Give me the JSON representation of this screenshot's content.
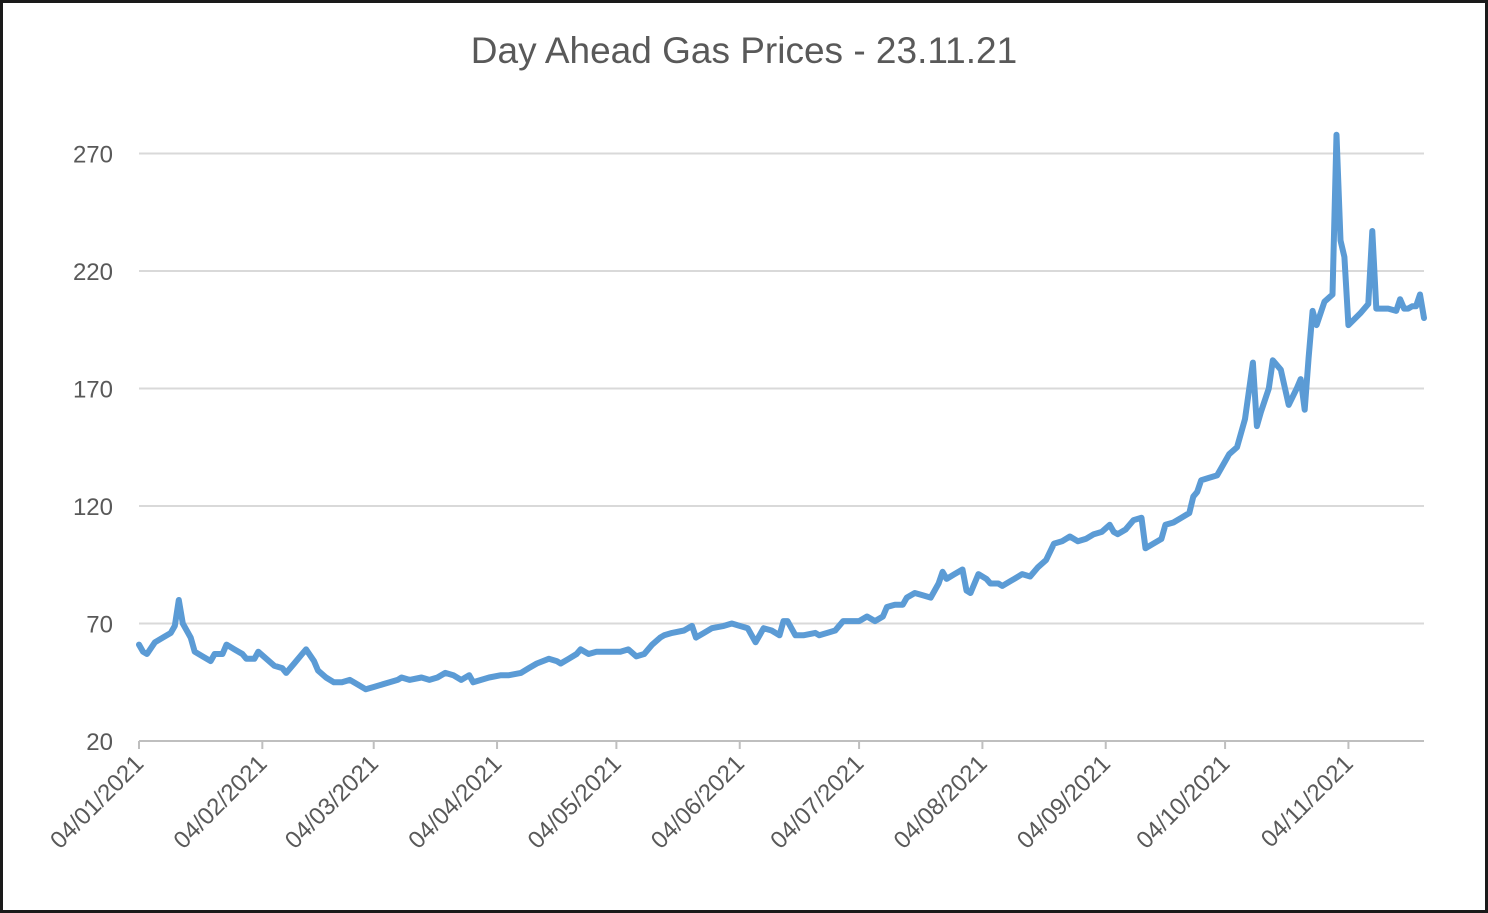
{
  "chart_data": {
    "type": "line",
    "title": "Day Ahead Gas Prices - 23.11.21",
    "xlabel": "",
    "ylabel": "",
    "ylim": [
      20,
      280
    ],
    "yticks": [
      20,
      70,
      120,
      170,
      220,
      270
    ],
    "xlim": [
      "2021-01-04",
      "2021-11-23"
    ],
    "xticks": [
      {
        "date": "2021-01-04",
        "label": "04/01/2021"
      },
      {
        "date": "2021-02-04",
        "label": "04/02/2021"
      },
      {
        "date": "2021-03-04",
        "label": "04/03/2021"
      },
      {
        "date": "2021-04-04",
        "label": "04/04/2021"
      },
      {
        "date": "2021-05-04",
        "label": "04/05/2021"
      },
      {
        "date": "2021-06-04",
        "label": "04/06/2021"
      },
      {
        "date": "2021-07-04",
        "label": "04/07/2021"
      },
      {
        "date": "2021-08-04",
        "label": "04/08/2021"
      },
      {
        "date": "2021-09-04",
        "label": "04/09/2021"
      },
      {
        "date": "2021-10-04",
        "label": "04/10/2021"
      },
      {
        "date": "2021-11-04",
        "label": "04/11/2021"
      }
    ],
    "grid": true,
    "line_color": "#5b9bd5",
    "series": [
      {
        "points": [
          [
            "2021-01-04",
            61
          ],
          [
            "2021-01-05",
            58
          ],
          [
            "2021-01-06",
            57
          ],
          [
            "2021-01-08",
            62
          ],
          [
            "2021-01-10",
            64
          ],
          [
            "2021-01-12",
            66
          ],
          [
            "2021-01-13",
            69
          ],
          [
            "2021-01-14",
            80
          ],
          [
            "2021-01-15",
            70
          ],
          [
            "2021-01-17",
            64
          ],
          [
            "2021-01-18",
            58
          ],
          [
            "2021-01-20",
            56
          ],
          [
            "2021-01-22",
            54
          ],
          [
            "2021-01-23",
            57
          ],
          [
            "2021-01-25",
            57
          ],
          [
            "2021-01-26",
            61
          ],
          [
            "2021-01-28",
            59
          ],
          [
            "2021-01-30",
            57
          ],
          [
            "2021-01-31",
            55
          ],
          [
            "2021-02-02",
            55
          ],
          [
            "2021-02-03",
            58
          ],
          [
            "2021-02-05",
            55
          ],
          [
            "2021-02-07",
            52
          ],
          [
            "2021-02-09",
            51
          ],
          [
            "2021-02-10",
            49
          ],
          [
            "2021-02-12",
            53
          ],
          [
            "2021-02-14",
            57
          ],
          [
            "2021-02-15",
            59
          ],
          [
            "2021-02-17",
            54
          ],
          [
            "2021-02-18",
            50
          ],
          [
            "2021-02-20",
            47
          ],
          [
            "2021-02-22",
            45
          ],
          [
            "2021-02-24",
            45
          ],
          [
            "2021-02-26",
            46
          ],
          [
            "2021-02-28",
            44
          ],
          [
            "2021-03-02",
            42
          ],
          [
            "2021-03-04",
            43
          ],
          [
            "2021-03-06",
            44
          ],
          [
            "2021-03-08",
            45
          ],
          [
            "2021-03-10",
            46
          ],
          [
            "2021-03-11",
            47
          ],
          [
            "2021-03-13",
            46
          ],
          [
            "2021-03-16",
            47
          ],
          [
            "2021-03-18",
            46
          ],
          [
            "2021-03-20",
            47
          ],
          [
            "2021-03-22",
            49
          ],
          [
            "2021-03-24",
            48
          ],
          [
            "2021-03-26",
            46
          ],
          [
            "2021-03-28",
            48
          ],
          [
            "2021-03-29",
            45
          ],
          [
            "2021-03-31",
            46
          ],
          [
            "2021-04-02",
            47
          ],
          [
            "2021-04-05",
            48
          ],
          [
            "2021-04-07",
            48
          ],
          [
            "2021-04-10",
            49
          ],
          [
            "2021-04-12",
            51
          ],
          [
            "2021-04-14",
            53
          ],
          [
            "2021-04-17",
            55
          ],
          [
            "2021-04-19",
            54
          ],
          [
            "2021-04-20",
            53
          ],
          [
            "2021-04-22",
            55
          ],
          [
            "2021-04-24",
            57
          ],
          [
            "2021-04-25",
            59
          ],
          [
            "2021-04-27",
            57
          ],
          [
            "2021-04-29",
            58
          ],
          [
            "2021-05-01",
            58
          ],
          [
            "2021-05-03",
            58
          ],
          [
            "2021-05-05",
            58
          ],
          [
            "2021-05-07",
            59
          ],
          [
            "2021-05-09",
            56
          ],
          [
            "2021-05-11",
            57
          ],
          [
            "2021-05-13",
            61
          ],
          [
            "2021-05-15",
            64
          ],
          [
            "2021-05-16",
            65
          ],
          [
            "2021-05-18",
            66
          ],
          [
            "2021-05-21",
            67
          ],
          [
            "2021-05-23",
            69
          ],
          [
            "2021-05-24",
            64
          ],
          [
            "2021-05-26",
            66
          ],
          [
            "2021-05-28",
            68
          ],
          [
            "2021-05-31",
            69
          ],
          [
            "2021-06-02",
            70
          ],
          [
            "2021-06-04",
            69
          ],
          [
            "2021-06-06",
            68
          ],
          [
            "2021-06-08",
            62
          ],
          [
            "2021-06-10",
            68
          ],
          [
            "2021-06-12",
            67
          ],
          [
            "2021-06-14",
            65
          ],
          [
            "2021-06-15",
            71
          ],
          [
            "2021-06-16",
            71
          ],
          [
            "2021-06-18",
            65
          ],
          [
            "2021-06-20",
            65
          ],
          [
            "2021-06-23",
            66
          ],
          [
            "2021-06-24",
            65
          ],
          [
            "2021-06-26",
            66
          ],
          [
            "2021-06-28",
            67
          ],
          [
            "2021-06-30",
            71
          ],
          [
            "2021-07-02",
            71
          ],
          [
            "2021-07-04",
            71
          ],
          [
            "2021-07-06",
            73
          ],
          [
            "2021-07-08",
            71
          ],
          [
            "2021-07-10",
            73
          ],
          [
            "2021-07-11",
            77
          ],
          [
            "2021-07-13",
            78
          ],
          [
            "2021-07-15",
            78
          ],
          [
            "2021-07-16",
            81
          ],
          [
            "2021-07-18",
            83
          ],
          [
            "2021-07-20",
            82
          ],
          [
            "2021-07-22",
            81
          ],
          [
            "2021-07-24",
            87
          ],
          [
            "2021-07-25",
            92
          ],
          [
            "2021-07-26",
            89
          ],
          [
            "2021-07-28",
            91
          ],
          [
            "2021-07-30",
            93
          ],
          [
            "2021-07-31",
            84
          ],
          [
            "2021-08-01",
            83
          ],
          [
            "2021-08-03",
            91
          ],
          [
            "2021-08-05",
            89
          ],
          [
            "2021-08-06",
            87
          ],
          [
            "2021-08-08",
            87
          ],
          [
            "2021-08-09",
            86
          ],
          [
            "2021-08-11",
            88
          ],
          [
            "2021-08-12",
            89
          ],
          [
            "2021-08-14",
            91
          ],
          [
            "2021-08-16",
            90
          ],
          [
            "2021-08-18",
            94
          ],
          [
            "2021-08-20",
            97
          ],
          [
            "2021-08-22",
            104
          ],
          [
            "2021-08-24",
            105
          ],
          [
            "2021-08-26",
            107
          ],
          [
            "2021-08-28",
            105
          ],
          [
            "2021-08-30",
            106
          ],
          [
            "2021-09-01",
            108
          ],
          [
            "2021-09-03",
            109
          ],
          [
            "2021-09-05",
            112
          ],
          [
            "2021-09-06",
            109
          ],
          [
            "2021-09-07",
            108
          ],
          [
            "2021-09-09",
            110
          ],
          [
            "2021-09-11",
            114
          ],
          [
            "2021-09-13",
            115
          ],
          [
            "2021-09-14",
            102
          ],
          [
            "2021-09-16",
            104
          ],
          [
            "2021-09-18",
            106
          ],
          [
            "2021-09-19",
            112
          ],
          [
            "2021-09-21",
            113
          ],
          [
            "2021-09-23",
            115
          ],
          [
            "2021-09-25",
            117
          ],
          [
            "2021-09-26",
            124
          ],
          [
            "2021-09-27",
            126
          ],
          [
            "2021-09-28",
            131
          ],
          [
            "2021-09-30",
            132
          ],
          [
            "2021-10-02",
            133
          ],
          [
            "2021-10-03",
            136
          ],
          [
            "2021-10-05",
            142
          ],
          [
            "2021-10-07",
            145
          ],
          [
            "2021-10-09",
            157
          ],
          [
            "2021-10-11",
            181
          ],
          [
            "2021-10-12",
            154
          ],
          [
            "2021-10-13",
            160
          ],
          [
            "2021-10-15",
            170
          ],
          [
            "2021-10-16",
            182
          ],
          [
            "2021-10-18",
            178
          ],
          [
            "2021-10-20",
            163
          ],
          [
            "2021-10-22",
            170
          ],
          [
            "2021-10-23",
            174
          ],
          [
            "2021-10-24",
            161
          ],
          [
            "2021-10-25",
            183
          ],
          [
            "2021-10-26",
            203
          ],
          [
            "2021-10-27",
            197
          ],
          [
            "2021-10-29",
            207
          ],
          [
            "2021-10-31",
            210
          ],
          [
            "2021-11-01",
            278
          ],
          [
            "2021-11-02",
            233
          ],
          [
            "2021-11-03",
            226
          ],
          [
            "2021-11-04",
            197
          ],
          [
            "2021-11-07",
            202
          ],
          [
            "2021-11-09",
            206
          ],
          [
            "2021-11-10",
            237
          ],
          [
            "2021-11-11",
            204
          ],
          [
            "2021-11-14",
            204
          ],
          [
            "2021-11-16",
            203
          ],
          [
            "2021-11-17",
            208
          ],
          [
            "2021-11-18",
            204
          ],
          [
            "2021-11-19",
            204
          ],
          [
            "2021-11-20",
            205
          ],
          [
            "2021-11-21",
            205
          ],
          [
            "2021-11-22",
            210
          ],
          [
            "2021-11-23",
            200
          ]
        ]
      }
    ]
  }
}
